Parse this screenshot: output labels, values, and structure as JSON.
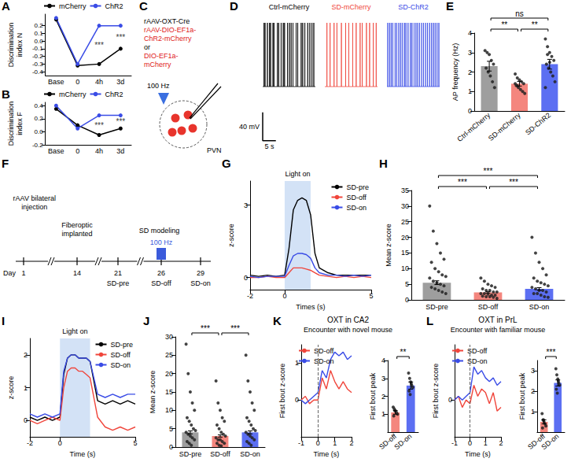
{
  "chart_data": [
    {
      "panel": "A",
      "type": "line",
      "y_label": "Discrimination index N",
      "categories": [
        "Base",
        "0",
        "4h",
        "3d"
      ],
      "series": [
        {
          "name": "mCherry",
          "color": "#000000",
          "values": [
            0.28,
            -0.32,
            -0.3,
            -0.1
          ]
        },
        {
          "name": "ChR2",
          "color": "#3a4ce6",
          "values": [
            0.3,
            -0.3,
            0.2,
            0.2
          ]
        }
      ],
      "ylim": [
        -0.45,
        0.35
      ],
      "yticks": [
        -0.4,
        -0.3,
        -0.2,
        -0.1,
        {
          "value": 0,
          "label": "0.0"
        },
        0.1,
        0.2
      ],
      "annotations": [
        {
          "category": "4h",
          "text": "***"
        },
        {
          "category": "3d",
          "text": "***"
        }
      ],
      "legend": "top",
      "marker": "circle"
    },
    {
      "panel": "B",
      "type": "line",
      "y_label": "Discrimination index F",
      "categories": [
        "Base",
        "0",
        "4h",
        "3d"
      ],
      "series": [
        {
          "name": "mCherry",
          "color": "#000000",
          "values": [
            0.35,
            0.1,
            -0.05,
            0.05
          ]
        },
        {
          "name": "ChR2",
          "color": "#3a4ce6",
          "values": [
            0.4,
            0.05,
            0.25,
            0.25
          ]
        }
      ],
      "ylim": [
        -0.2,
        0.45
      ],
      "yticks": [
        -0.2,
        {
          "value": 0,
          "label": "0.0"
        },
        0.2,
        0.4
      ],
      "annotations": [
        {
          "category": "4h",
          "text": "***"
        },
        {
          "category": "3d",
          "text": "***"
        }
      ],
      "legend": "top",
      "marker": "circle"
    },
    {
      "panel": "C",
      "type": "diagram",
      "lines": [
        {
          "text": "rAAV-OXT-Cre",
          "color": "#000000"
        },
        {
          "text": "rAAV-DIO-EF1a-",
          "color": "#e02020"
        },
        {
          "text": "ChR2-mCherry",
          "color": "#e02020"
        },
        {
          "text": "or",
          "color": "#000000"
        },
        {
          "text": "DIO-EF1a-",
          "color": "#e02020"
        },
        {
          "text": "mCherry",
          "color": "#e02020"
        }
      ],
      "stimulus": "100 Hz",
      "region": "PVN"
    },
    {
      "panel": "D",
      "type": "trace",
      "tick_labels": false,
      "xlim": [
        0,
        20
      ],
      "ylim": [
        -140,
        40
      ],
      "resting": -60,
      "spike_peak": 30,
      "traces": [
        {
          "name": "Ctrl-mCherry",
          "color": "#000000",
          "spike_times": [
            0.5,
            0.9,
            1.8,
            2.6,
            3.0,
            3.9,
            4.3,
            5.6,
            6.1,
            7.0,
            7.8,
            8.3,
            9.4,
            10.1,
            10.8,
            11.5,
            12.7,
            13.3,
            14.6,
            15.2,
            16.0,
            17.1,
            17.9,
            18.7,
            19.4
          ]
        },
        {
          "name": "SD-mCherry",
          "color": "#f0463c",
          "spike_times": [
            0.8,
            2.0,
            3.5,
            4.6,
            6.3,
            7.9,
            9.1,
            10.6,
            11.9,
            13.4,
            14.2,
            15.8,
            17.0,
            18.4,
            19.5
          ]
        },
        {
          "name": "SD-ChR2",
          "color": "#3a4ce6",
          "spike_times": [
            0.3,
            1.0,
            1.6,
            2.2,
            3.1,
            3.7,
            4.5,
            5.2,
            5.8,
            6.6,
            7.2,
            8.0,
            8.9,
            9.5,
            10.3,
            11.0,
            11.7,
            12.4,
            13.2,
            13.9,
            14.7,
            15.4,
            16.2,
            16.9,
            17.6,
            18.3,
            19.0,
            19.7
          ]
        }
      ],
      "scale_bar": {
        "y": 40,
        "y_label": "40 mV",
        "x": 5,
        "x_label": "5 s"
      }
    },
    {
      "panel": "E",
      "type": "bar",
      "y_label": "AP frequency (Hz)",
      "categories": [
        "Ctrl-mCherry",
        "SD-mCherry",
        "SD-ChR2"
      ],
      "values": [
        2.3,
        1.4,
        2.4
      ],
      "errors": [
        0.25,
        0.12,
        0.25
      ],
      "colors": [
        "#9e9e9e",
        "#f4867e",
        "#5c6ff2"
      ],
      "points": [
        [
          3.1,
          3.0,
          2.9,
          2.6,
          2.4,
          2.2,
          2.0,
          1.8,
          1.5,
          1.2
        ],
        [
          1.9,
          1.7,
          1.6,
          1.5,
          1.4,
          1.3,
          1.2,
          1.1,
          1.0,
          0.9,
          1.4,
          1.3
        ],
        [
          3.7,
          3.3,
          3.0,
          2.8,
          2.6,
          2.4,
          2.2,
          2.0,
          1.8,
          1.5,
          1.2,
          2.9,
          2.5
        ]
      ],
      "ylim": [
        0,
        4
      ],
      "yticks": [
        0,
        1,
        2,
        3,
        4
      ],
      "comparisons": [
        {
          "from": 0,
          "to": 2,
          "label": "ns"
        },
        {
          "from": 0,
          "to": 1,
          "label": "**"
        },
        {
          "from": 1,
          "to": 2,
          "label": "**"
        }
      ]
    },
    {
      "panel": "F",
      "type": "timeline",
      "axis_label": "Day",
      "events": [
        {
          "day": 1,
          "above": "rAAV bilateral injection"
        },
        {
          "day": 14,
          "above": "Fiberoptic implanted"
        },
        {
          "day": 21,
          "below": "SD-pre"
        },
        {
          "day": 26,
          "below": "SD-off",
          "stimulus": "100 Hz"
        },
        {
          "day": 29,
          "below": "SD-on"
        }
      ],
      "period": {
        "from": 21,
        "to": 29,
        "label": "SD modeling"
      }
    },
    {
      "panel": "G",
      "type": "line",
      "x_label": "Times (s)",
      "y_label": "z-score",
      "x": [
        -2,
        -1.5,
        -1,
        -0.5,
        0,
        0.25,
        0.5,
        0.75,
        1,
        1.25,
        1.5,
        1.75,
        2,
        2.5,
        3,
        3.5,
        4,
        4.5,
        5
      ],
      "series": [
        {
          "name": "SD-pre",
          "color": "#000000",
          "values": [
            0.1,
            0.05,
            0.1,
            0.05,
            0.1,
            1.2,
            2.8,
            3.2,
            3.3,
            3.2,
            2.6,
            1.0,
            0.4,
            0.2,
            0.1,
            0.1,
            0.1,
            0.1,
            0.1
          ]
        },
        {
          "name": "SD-off",
          "color": "#f0463c",
          "values": [
            0,
            0,
            0.05,
            0,
            0,
            0.2,
            0.4,
            0.4,
            0.4,
            0.35,
            0.3,
            0.2,
            0.1,
            0.05,
            0,
            0.05,
            0,
            0.05,
            0
          ]
        },
        {
          "name": "SD-on",
          "color": "#3a4ce6",
          "values": [
            0.05,
            0,
            0.05,
            0.05,
            0.05,
            0.5,
            0.9,
            1.0,
            1.0,
            0.95,
            0.8,
            0.4,
            0.2,
            0.1,
            0.1,
            0.05,
            0.1,
            0.05,
            0.1
          ]
        }
      ],
      "xlim": [
        -2,
        5
      ],
      "xticks": [
        -2,
        0,
        5
      ],
      "ylim": [
        -0.5,
        4
      ],
      "yticks": [
        0,
        3
      ],
      "shaded": {
        "from": 0,
        "to": 1.5,
        "label": "Light on"
      },
      "legend": "top-right"
    },
    {
      "panel": "H",
      "type": "bar",
      "y_label": "Mean z-score",
      "categories": [
        "SD-pre",
        "SD-off",
        "SD-on"
      ],
      "values": [
        5.5,
        2.4,
        3.5
      ],
      "errors": [
        0.6,
        0.2,
        0.4
      ],
      "colors": [
        "#9e9e9e",
        "#f4867e",
        "#5c6ff2"
      ],
      "points": [
        [
          30,
          22,
          18,
          15,
          13,
          12,
          10,
          9,
          8,
          7.5,
          7,
          6,
          5.5,
          5,
          4.5,
          4,
          3.5,
          3,
          2.5,
          2
        ],
        [
          7,
          6,
          5,
          4.5,
          4,
          3.5,
          3,
          3,
          2.5,
          2.5,
          2,
          2,
          1.8,
          1.5,
          1.5,
          1.2,
          1,
          1,
          0.8,
          0.5
        ],
        [
          20,
          15,
          12,
          10,
          8,
          7,
          6,
          5.5,
          5,
          4.5,
          4,
          3.5,
          3,
          3,
          2.5,
          2,
          2,
          1.5,
          1,
          0.8
        ]
      ],
      "ylim": [
        0,
        35
      ],
      "yticks": [
        0,
        5,
        10,
        15,
        20,
        25,
        30,
        35
      ],
      "comparisons": [
        {
          "from": 0,
          "to": 1,
          "label": "***"
        },
        {
          "from": 0,
          "to": 2,
          "label": "***"
        },
        {
          "from": 1,
          "to": 2,
          "label": "***"
        }
      ]
    },
    {
      "panel": "I",
      "type": "line",
      "x_label": "Time (s)",
      "y_label": "z-score",
      "x": [
        -2,
        -1.5,
        -1,
        -0.5,
        0,
        0.25,
        0.5,
        0.75,
        1,
        1.25,
        1.5,
        1.75,
        2,
        2.5,
        3,
        3.5,
        4,
        4.5,
        5
      ],
      "series": [
        {
          "name": "SD-pre",
          "color": "#000000",
          "values": [
            0.1,
            0,
            0.1,
            0,
            0.1,
            1.4,
            1.9,
            2.0,
            2.0,
            1.9,
            1.9,
            1.9,
            1.8,
            0.6,
            0.5,
            0.6,
            0.5,
            0.6,
            0.5
          ]
        },
        {
          "name": "SD-off",
          "color": "#f0463c",
          "values": [
            0,
            -0.1,
            0,
            0.1,
            0,
            1.0,
            1.5,
            1.6,
            1.6,
            1.5,
            1.5,
            1.4,
            1.3,
            0.1,
            -0.2,
            -0.3,
            -0.2,
            -0.3,
            -0.2
          ]
        },
        {
          "name": "SD-on",
          "color": "#3a4ce6",
          "values": [
            0.2,
            0.1,
            0.2,
            0.1,
            0.2,
            1.5,
            1.9,
            2.0,
            2.0,
            1.9,
            1.9,
            1.9,
            1.8,
            0.8,
            0.7,
            0.8,
            0.7,
            0.8,
            0.8
          ]
        }
      ],
      "xlim": [
        -2,
        5
      ],
      "xticks": [
        -2,
        0,
        5
      ],
      "ylim": [
        -0.5,
        2.5
      ],
      "yticks": [
        0,
        1,
        2
      ],
      "shaded": {
        "from": 0,
        "to": 2,
        "label": "Light on"
      },
      "legend": "top-right"
    },
    {
      "panel": "J",
      "type": "bar",
      "y_label": "Mean z-score",
      "categories": [
        "SD-pre",
        "SD-off",
        "SD-on"
      ],
      "values": [
        4.0,
        3.0,
        4.0
      ],
      "errors": [
        0.4,
        0.3,
        0.4
      ],
      "colors": [
        "#9e9e9e",
        "#f4867e",
        "#5c6ff2"
      ],
      "points": [
        [
          28,
          20,
          15,
          12,
          10,
          8,
          7,
          6,
          5,
          4.5,
          4,
          3.5,
          3,
          2.5,
          2,
          1.5,
          1,
          0.5
        ],
        [
          18,
          12,
          10,
          8,
          7,
          6,
          5,
          4,
          3.5,
          3,
          2.5,
          2,
          2,
          1.5,
          1,
          1,
          0.5,
          0.3
        ],
        [
          25,
          18,
          15,
          12,
          10,
          8,
          7,
          6,
          5,
          4.5,
          4,
          3.5,
          3,
          2.5,
          2,
          1.5,
          1,
          0.5
        ]
      ],
      "ylim": [
        0,
        30
      ],
      "yticks": [
        0,
        5,
        10,
        15,
        20,
        25,
        30
      ],
      "comparisons": [
        {
          "from": 0,
          "to": 1,
          "label": "***"
        },
        {
          "from": 1,
          "to": 2,
          "label": "***"
        }
      ]
    },
    {
      "panel": "K",
      "type": "line",
      "title": "OXT in CA2",
      "subtitle": "Encounter with novel mouse",
      "x_label": "Time (s)",
      "y_label": "First bout z-score",
      "x": [
        -1,
        -0.75,
        -0.5,
        -0.25,
        0,
        0.25,
        0.5,
        0.75,
        1,
        1.25,
        1.5,
        1.75,
        2
      ],
      "series": [
        {
          "name": "SD-off",
          "color": "#f0463c",
          "values": [
            0,
            0.1,
            -0.1,
            0,
            0,
            0.6,
            0.3,
            0.8,
            0.5,
            0.3,
            0.5,
            0.3,
            0.2
          ]
        },
        {
          "name": "SD-on",
          "color": "#3a4ce6",
          "values": [
            0,
            -0.1,
            0,
            0.1,
            0.2,
            0.8,
            0.6,
            1.1,
            1.3,
            1.2,
            1.3,
            1.1,
            1.2
          ]
        }
      ],
      "xlim": [
        -1,
        2
      ],
      "xticks": [
        -1,
        0,
        1,
        2
      ],
      "ylim": [
        -1,
        1.5
      ],
      "yticks": [
        0,
        1
      ],
      "event_x": 0,
      "legend": "top-left"
    },
    {
      "type": "bar",
      "y_label": "First bout peak",
      "categories": [
        "SD-off",
        "SD-on"
      ],
      "values": [
        1.1,
        2.6
      ],
      "errors": [
        0.1,
        0.2
      ],
      "colors": [
        "#f4867e",
        "#5c6ff2"
      ],
      "points": [
        [
          1.4,
          1.3,
          1.2,
          1.1,
          1.0,
          0.9,
          1.2
        ],
        [
          3.3,
          3.0,
          2.8,
          2.6,
          2.5,
          2.3,
          2.1,
          2.7
        ]
      ],
      "ylim": [
        0,
        4
      ],
      "yticks": [
        1,
        2,
        3,
        4
      ],
      "comparisons": [
        {
          "from": 0,
          "to": 1,
          "label": "**"
        }
      ]
    },
    {
      "panel": "L",
      "type": "line",
      "title": "OXT in PrL",
      "subtitle": "Encounter with familiar mouse",
      "x_label": "Time (s)",
      "y_label": "First bout z-score",
      "x": [
        -1,
        -0.75,
        -0.5,
        -0.25,
        0,
        0.25,
        0.5,
        0.75,
        1,
        1.25,
        1.5,
        1.75,
        2
      ],
      "series": [
        {
          "name": "SD-off",
          "color": "#f0463c",
          "values": [
            0,
            0.1,
            -0.2,
            0,
            -0.1,
            0.4,
            0.1,
            0.3,
            0.2,
            -0.1,
            0.2,
            -0.3,
            -0.2
          ]
        },
        {
          "name": "SD-on",
          "color": "#3a4ce6",
          "values": [
            0,
            0.1,
            0,
            0.1,
            0.2,
            0.9,
            0.7,
            0.8,
            0.6,
            0.5,
            0.6,
            0.4,
            0.5
          ]
        }
      ],
      "xlim": [
        -1,
        2
      ],
      "xticks": [
        -1,
        0,
        1,
        2
      ],
      "ylim": [
        -1,
        1.5
      ],
      "yticks": [
        0
      ],
      "event_x": 0,
      "legend": "top-left"
    },
    {
      "type": "bar",
      "y_label": "First bout peak",
      "categories": [
        "SD-off",
        "SD-on"
      ],
      "values": [
        0.5,
        2.4
      ],
      "errors": [
        0.1,
        0.15
      ],
      "colors": [
        "#f4867e",
        "#5c6ff2"
      ],
      "points": [
        [
          0.9,
          0.6,
          0.5,
          0.4,
          0.3,
          0.2,
          0.6
        ],
        [
          3.1,
          2.8,
          2.6,
          2.4,
          2.3,
          2.1,
          1.9,
          2.5
        ]
      ],
      "ylim": [
        0,
        3.5
      ],
      "yticks": [
        1,
        2,
        3
      ],
      "comparisons": [
        {
          "from": 0,
          "to": 1,
          "label": "***"
        }
      ]
    }
  ]
}
